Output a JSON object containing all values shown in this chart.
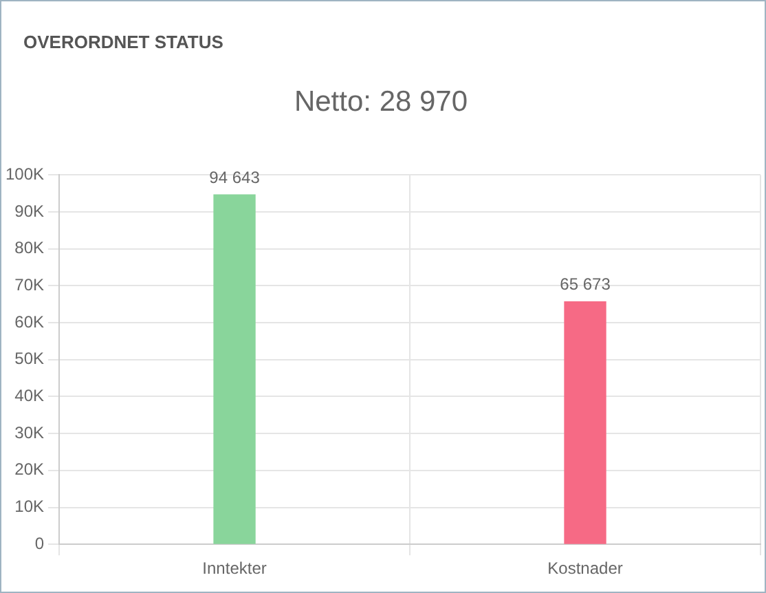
{
  "chart_data": {
    "type": "bar",
    "title": "OVERORDNET STATUS",
    "subtitle": "Netto: 28 970",
    "categories": [
      "Inntekter",
      "Kostnader"
    ],
    "values": [
      94643,
      65673
    ],
    "colors": [
      "#89d59b",
      "#f66a85"
    ],
    "value_labels": [
      "94 643",
      "65 673"
    ],
    "ylim": [
      0,
      100000
    ],
    "yticks": [
      0,
      {
        "value": 10000,
        "label": "10K"
      },
      {
        "value": 20000,
        "label": "20K"
      },
      {
        "value": 30000,
        "label": "30K"
      },
      {
        "value": 40000,
        "label": "40K"
      },
      {
        "value": 50000,
        "label": "50K"
      },
      {
        "value": 60000,
        "label": "60K"
      },
      {
        "value": 70000,
        "label": "70K"
      },
      {
        "value": 80000,
        "label": "80K"
      },
      {
        "value": 90000,
        "label": "90K"
      },
      {
        "value": 100000,
        "label": "100K"
      }
    ],
    "grid": true
  }
}
